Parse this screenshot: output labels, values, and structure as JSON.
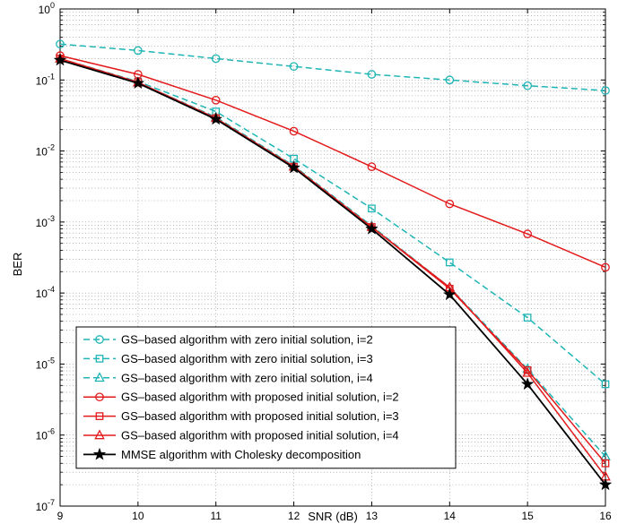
{
  "chart_data": {
    "type": "line",
    "xlabel": "SNR (dB)",
    "ylabel": "BER",
    "xlim": [
      9,
      16
    ],
    "ylim": [
      1e-07,
      1
    ],
    "yscale": "log",
    "grid": true,
    "legend_position": "bottom-left",
    "x": [
      9,
      10,
      11,
      12,
      13,
      14,
      15,
      16
    ],
    "x_tick_labels": [
      "9",
      "10",
      "11",
      "12",
      "13",
      "14",
      "15",
      "16"
    ],
    "y_tick_labels": [
      {
        "base": "10",
        "exp": "-7"
      },
      {
        "base": "10",
        "exp": "-6"
      },
      {
        "base": "10",
        "exp": "-5"
      },
      {
        "base": "10",
        "exp": "-4"
      },
      {
        "base": "10",
        "exp": "-3"
      },
      {
        "base": "10",
        "exp": "-2"
      },
      {
        "base": "10",
        "exp": "-1"
      },
      {
        "base": "10",
        "exp": "0"
      }
    ],
    "series": [
      {
        "name": "GS–based algorithm with zero initial solution, i=2",
        "color": "#1fb5b5",
        "dash": "dashed",
        "marker": "circle",
        "values": [
          0.32,
          0.26,
          0.2,
          0.155,
          0.12,
          0.1,
          0.083,
          0.071
        ]
      },
      {
        "name": "GS–based algorithm with zero initial solution, i=3",
        "color": "#1fb5b5",
        "dash": "dashed",
        "marker": "square",
        "values": [
          0.2,
          0.095,
          0.036,
          0.0078,
          0.00155,
          0.00027,
          4.5e-05,
          5.2e-06
        ]
      },
      {
        "name": "GS–based algorithm with zero initial solution, i=4",
        "color": "#1fb5b5",
        "dash": "dashed",
        "marker": "triangle",
        "values": [
          0.2,
          0.092,
          0.03,
          0.0062,
          0.00088,
          0.00012,
          8.5e-06,
          5e-07
        ]
      },
      {
        "name": "GS–based algorithm with proposed initial solution, i=2",
        "color": "#e31a1c",
        "dash": "solid",
        "marker": "circle",
        "values": [
          0.22,
          0.12,
          0.052,
          0.019,
          0.006,
          0.0018,
          0.00068,
          0.00023
        ]
      },
      {
        "name": "GS–based algorithm with proposed initial solution, i=3",
        "color": "#e31a1c",
        "dash": "solid",
        "marker": "square",
        "values": [
          0.2,
          0.093,
          0.029,
          0.006,
          0.00085,
          0.000115,
          8.2e-06,
          4e-07
        ]
      },
      {
        "name": "GS–based algorithm with proposed initial solution, i=4",
        "color": "#e31a1c",
        "dash": "solid",
        "marker": "triangle",
        "values": [
          0.2,
          0.092,
          0.029,
          0.006,
          0.00085,
          0.00012,
          7.5e-06,
          2.6e-07
        ]
      },
      {
        "name": "MMSE algorithm with Cholesky decomposition",
        "color": "#000000",
        "dash": "solid",
        "marker": "star",
        "values": [
          0.19,
          0.09,
          0.028,
          0.0058,
          0.0008,
          9.5e-05,
          5.2e-06,
          2e-07
        ]
      }
    ]
  }
}
